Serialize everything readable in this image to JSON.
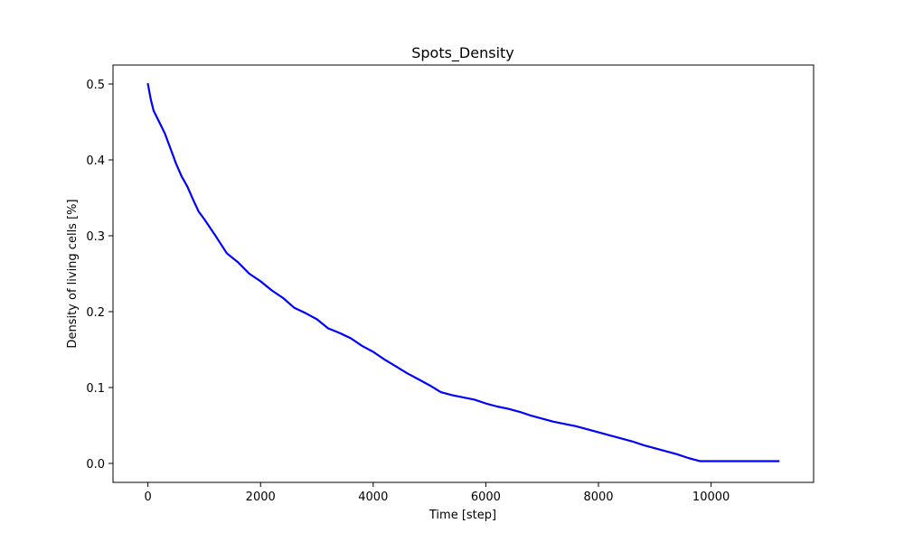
{
  "chart_data": {
    "type": "line",
    "title": "Spots_Density",
    "xlabel": "Time [step]",
    "ylabel": "Density of living cells [%]",
    "xlim": [
      -620,
      11820
    ],
    "ylim": [
      -0.025,
      0.525
    ],
    "xticks": [
      0,
      2000,
      4000,
      6000,
      8000,
      10000
    ],
    "yticks": [
      0.0,
      0.1,
      0.2,
      0.3,
      0.4,
      0.5
    ],
    "xtick_labels": [
      "0",
      "2000",
      "4000",
      "6000",
      "8000",
      "10000"
    ],
    "ytick_labels": [
      "0.0",
      "0.1",
      "0.2",
      "0.3",
      "0.4",
      "0.5"
    ],
    "grid": false,
    "legend": "none",
    "series": [
      {
        "color": "#0000ff",
        "x": [
          0,
          50,
          100,
          200,
          300,
          400,
          500,
          600,
          700,
          800,
          900,
          1000,
          1200,
          1400,
          1600,
          1800,
          2000,
          2200,
          2400,
          2600,
          2800,
          3000,
          3200,
          3400,
          3600,
          3800,
          4000,
          4200,
          4400,
          4600,
          4800,
          5000,
          5200,
          5400,
          5600,
          5800,
          6000,
          6200,
          6400,
          6600,
          6800,
          7000,
          7200,
          7400,
          7600,
          7800,
          8000,
          8200,
          8400,
          8600,
          8800,
          9000,
          9200,
          9400,
          9600,
          9800,
          10000,
          10500,
          11000,
          11200
        ],
        "y": [
          0.5,
          0.48,
          0.465,
          0.45,
          0.435,
          0.415,
          0.395,
          0.378,
          0.365,
          0.348,
          0.332,
          0.322,
          0.3,
          0.277,
          0.265,
          0.25,
          0.24,
          0.228,
          0.218,
          0.205,
          0.198,
          0.19,
          0.178,
          0.172,
          0.165,
          0.155,
          0.147,
          0.137,
          0.128,
          0.119,
          0.111,
          0.103,
          0.094,
          0.09,
          0.087,
          0.084,
          0.079,
          0.075,
          0.072,
          0.068,
          0.063,
          0.059,
          0.055,
          0.052,
          0.049,
          0.045,
          0.041,
          0.037,
          0.033,
          0.029,
          0.024,
          0.02,
          0.016,
          0.012,
          0.007,
          0.003,
          0.003,
          0.003,
          0.003,
          0.003
        ]
      }
    ]
  }
}
